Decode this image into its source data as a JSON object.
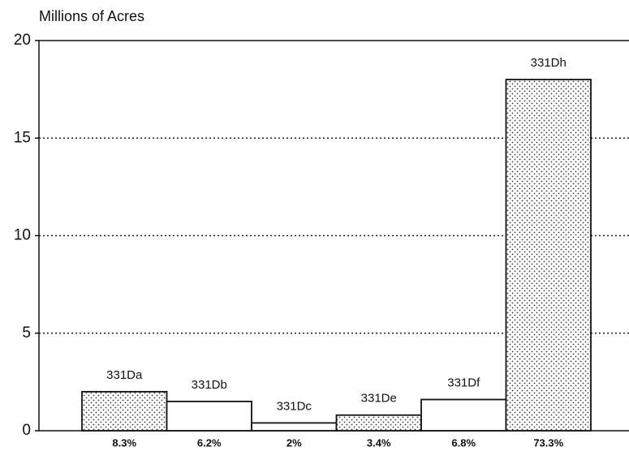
{
  "chart_data": {
    "type": "bar",
    "y_label": "Millions of Acres",
    "categories": [
      "331Da",
      "331Db",
      "331Dc",
      "331De",
      "331Df",
      "331Dh"
    ],
    "values": [
      2.0,
      1.5,
      0.4,
      0.8,
      1.6,
      18.0
    ],
    "shares": [
      "8.3%",
      "6.2%",
      "2%",
      "3.4%",
      "6.8%",
      "73.3%"
    ],
    "patterns": [
      "dots",
      "none",
      "none",
      "dots",
      "none",
      "dots"
    ],
    "ylim": [
      0,
      20
    ],
    "yticks": [
      0,
      5,
      10,
      15,
      20
    ],
    "grid": true
  }
}
